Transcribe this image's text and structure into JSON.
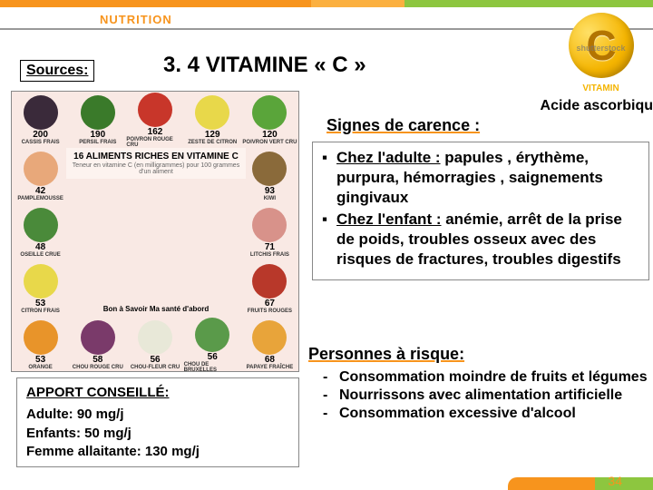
{
  "header": {
    "label": "NUTRITION"
  },
  "badge": {
    "letter": "C",
    "text": "VITAMIN",
    "watermark": "shutterstock"
  },
  "sources_label": "Sources:",
  "main_title": "3. 4 VITAMINE « C »",
  "acide": "Acide ascorbiqu",
  "signes_title": "Signes de carence :",
  "symptoms": {
    "adult_label": "Chez l'adulte :",
    "adult_text": " papules , érythème, purpura, hémorragies , saignements gingivaux",
    "child_label": "Chez l'enfant :",
    "child_text": " anémie, arrêt de la prise de poids, troubles osseux avec des risques de fractures, troubles digestifs"
  },
  "personnes_title": "Personnes à risque:",
  "risks": [
    "Consommation moindre de fruits et légumes",
    "Nourrissons avec alimentation artificielle",
    "Consommation excessive d'alcool"
  ],
  "apport": {
    "title": "APPORT CONSEILLÉ:",
    "lines": [
      "Adulte: 90 mg/j",
      "Enfants: 50 mg/j",
      "Femme allaitante: 130 mg/j"
    ]
  },
  "chart": {
    "center_title": "16 ALIMENTS RICHES EN VITAMINE C",
    "center_sub": "Teneur en vitamine C (en milligrammes) pour 100 grammes d'un aliment",
    "footer": "Bon à Savoir Ma santé d'abord",
    "row1": [
      {
        "name": "CASSIS FRAIS",
        "val": "200",
        "color": "#3a2a3a"
      },
      {
        "name": "PERSIL FRAIS",
        "val": "190",
        "color": "#3a7a2a"
      },
      {
        "name": "POIVRON ROUGE CRU",
        "val": "162",
        "color": "#c8362a"
      },
      {
        "name": "ZESTE DE CITRON",
        "val": "129",
        "color": "#e8d84a"
      },
      {
        "name": "POIVRON VERT CRU",
        "val": "120",
        "color": "#5aa53a"
      }
    ],
    "row2_left": {
      "name": "PAMPLEMOUSSE",
      "val": "42",
      "color": "#e8a87a"
    },
    "row2_right": {
      "name": "KIWI",
      "val": "93",
      "color": "#8a6a3a"
    },
    "row3_left": {
      "name": "OSEILLE CRUE",
      "val": "48",
      "color": "#4a8a3a"
    },
    "row3_right": {
      "name": "LITCHIS FRAIS",
      "val": "71",
      "color": "#d8928a"
    },
    "row4_left": {
      "name": "CITRON FRAIS",
      "val": "53",
      "color": "#e8d84a"
    },
    "row4_right": {
      "name": "FRUITS ROUGES",
      "val": "67",
      "color": "#b8382a"
    },
    "row5": [
      {
        "name": "ORANGE",
        "val": "53",
        "color": "#e8942a"
      },
      {
        "name": "CHOU ROUGE CRU",
        "val": "58",
        "color": "#7a3a6a"
      },
      {
        "name": "CHOU-FLEUR CRU",
        "val": "56",
        "color": "#e8e8d8"
      },
      {
        "name": "CHOU DE BRUXELLES",
        "val": "56",
        "color": "#5a9a4a"
      },
      {
        "name": "PAPAYE FRAÎCHE",
        "val": "68",
        "color": "#e8a43a"
      }
    ]
  },
  "footer_text": "34"
}
